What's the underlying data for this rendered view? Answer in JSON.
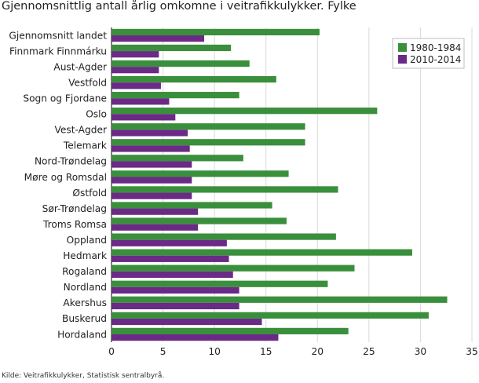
{
  "chart_data": {
    "type": "bar",
    "orientation": "horizontal",
    "title": "Gjennomsnittlig antall årlig omkomne i veitrafikkulykker. Fylke",
    "categories": [
      "Gjennomsnitt landet",
      "Finnmark Finnmárku",
      "Aust-Agder",
      "Vestfold",
      "Sogn og Fjordane",
      "Oslo",
      "Vest-Agder",
      "Telemark",
      "Nord-Trøndelag",
      "Møre og Romsdal",
      "Østfold",
      "Sør-Trøndelag",
      "Troms Romsa",
      "Oppland",
      "Hedmark",
      "Rogaland",
      "Nordland",
      "Akershus",
      "Buskerud",
      "Hordaland"
    ],
    "series": [
      {
        "name": "1980-1984",
        "color": "#3a8f3c",
        "values": [
          20.2,
          11.6,
          13.4,
          16.0,
          12.4,
          25.8,
          18.8,
          18.8,
          12.8,
          17.2,
          22.0,
          15.6,
          17.0,
          21.8,
          29.2,
          23.6,
          21.0,
          32.6,
          30.8,
          23.0
        ]
      },
      {
        "name": "2010-2014",
        "color": "#6a2a85",
        "values": [
          9.0,
          4.6,
          4.6,
          4.8,
          5.6,
          6.2,
          7.4,
          7.6,
          7.8,
          7.8,
          7.8,
          8.4,
          8.4,
          11.2,
          11.4,
          11.8,
          12.4,
          12.4,
          14.6,
          16.2
        ]
      }
    ],
    "xlim": [
      0,
      35
    ],
    "xticks": [
      0,
      5,
      10,
      15,
      20,
      25,
      30,
      35
    ],
    "grid": true,
    "legend_position": "top-right"
  },
  "source": "Kilde: Veitrafikkulykker, Statistisk sentralbyrå."
}
